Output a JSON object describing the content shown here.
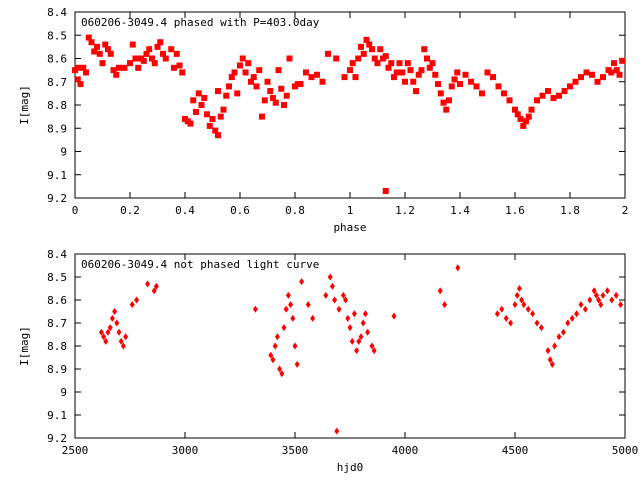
{
  "chart_data": [
    {
      "type": "scatter",
      "title": "060206-3049.4 phased with P=403.0day",
      "xlabel": "phase",
      "ylabel": "I[mag]",
      "xlim": [
        0,
        2
      ],
      "ylim": [
        9.2,
        8.4
      ],
      "y_inverted": true,
      "grid": false,
      "marker_color": "#ff0000",
      "xticks": [
        "0",
        "0.2",
        "0.4",
        "0.6",
        "0.8",
        "1",
        "1.2",
        "1.4",
        "1.6",
        "1.8",
        "2"
      ],
      "yticks": [
        "8.4",
        "8.5",
        "8.6",
        "8.7",
        "8.8",
        "8.9",
        "9",
        "9.1",
        "9.2"
      ],
      "points": [
        [
          0.0,
          8.65
        ],
        [
          0.01,
          8.64
        ],
        [
          0.01,
          8.69
        ],
        [
          0.02,
          8.71
        ],
        [
          0.03,
          8.64
        ],
        [
          0.04,
          8.66
        ],
        [
          0.05,
          8.51
        ],
        [
          0.06,
          8.53
        ],
        [
          0.07,
          8.57
        ],
        [
          0.08,
          8.55
        ],
        [
          0.09,
          8.58
        ],
        [
          0.1,
          8.62
        ],
        [
          0.11,
          8.54
        ],
        [
          0.12,
          8.56
        ],
        [
          0.13,
          8.58
        ],
        [
          0.14,
          8.65
        ],
        [
          0.15,
          8.67
        ],
        [
          0.16,
          8.64
        ],
        [
          0.18,
          8.64
        ],
        [
          0.2,
          8.62
        ],
        [
          0.21,
          8.54
        ],
        [
          0.22,
          8.6
        ],
        [
          0.23,
          8.64
        ],
        [
          0.24,
          8.6
        ],
        [
          0.25,
          8.61
        ],
        [
          0.26,
          8.58
        ],
        [
          0.27,
          8.56
        ],
        [
          0.28,
          8.6
        ],
        [
          0.29,
          8.62
        ],
        [
          0.3,
          8.55
        ],
        [
          0.31,
          8.53
        ],
        [
          0.32,
          8.58
        ],
        [
          0.33,
          8.6
        ],
        [
          0.35,
          8.56
        ],
        [
          0.36,
          8.64
        ],
        [
          0.37,
          8.58
        ],
        [
          0.38,
          8.63
        ],
        [
          0.39,
          8.66
        ],
        [
          0.4,
          8.86
        ],
        [
          0.41,
          8.87
        ],
        [
          0.42,
          8.88
        ],
        [
          0.43,
          8.78
        ],
        [
          0.44,
          8.83
        ],
        [
          0.45,
          8.75
        ],
        [
          0.46,
          8.8
        ],
        [
          0.47,
          8.77
        ],
        [
          0.48,
          8.84
        ],
        [
          0.49,
          8.89
        ],
        [
          0.5,
          8.86
        ],
        [
          0.51,
          8.91
        ],
        [
          0.52,
          8.93
        ],
        [
          0.52,
          8.74
        ],
        [
          0.53,
          8.85
        ],
        [
          0.54,
          8.82
        ],
        [
          0.55,
          8.76
        ],
        [
          0.56,
          8.72
        ],
        [
          0.57,
          8.68
        ],
        [
          0.58,
          8.66
        ],
        [
          0.59,
          8.75
        ],
        [
          0.6,
          8.63
        ],
        [
          0.61,
          8.6
        ],
        [
          0.62,
          8.66
        ],
        [
          0.63,
          8.62
        ],
        [
          0.64,
          8.7
        ],
        [
          0.65,
          8.68
        ],
        [
          0.66,
          8.72
        ],
        [
          0.67,
          8.65
        ],
        [
          0.68,
          8.85
        ],
        [
          0.69,
          8.78
        ],
        [
          0.7,
          8.7
        ],
        [
          0.71,
          8.74
        ],
        [
          0.72,
          8.77
        ],
        [
          0.73,
          8.79
        ],
        [
          0.74,
          8.65
        ],
        [
          0.75,
          8.73
        ],
        [
          0.76,
          8.8
        ],
        [
          0.77,
          8.76
        ],
        [
          0.78,
          8.6
        ],
        [
          0.8,
          8.72
        ],
        [
          0.81,
          8.71
        ],
        [
          0.82,
          8.71
        ],
        [
          0.84,
          8.66
        ],
        [
          0.86,
          8.68
        ],
        [
          0.88,
          8.67
        ],
        [
          0.9,
          8.7
        ],
        [
          0.92,
          8.58
        ],
        [
          0.95,
          8.6
        ],
        [
          0.98,
          8.68
        ],
        [
          1.0,
          8.65
        ],
        [
          1.01,
          8.62
        ],
        [
          1.02,
          8.68
        ],
        [
          1.03,
          8.6
        ],
        [
          1.04,
          8.55
        ],
        [
          1.05,
          8.58
        ],
        [
          1.06,
          8.52
        ],
        [
          1.07,
          8.54
        ],
        [
          1.08,
          8.56
        ],
        [
          1.09,
          8.6
        ],
        [
          1.1,
          8.62
        ],
        [
          1.11,
          8.56
        ],
        [
          1.12,
          8.6
        ],
        [
          1.13,
          8.59
        ],
        [
          1.14,
          8.64
        ],
        [
          1.15,
          8.62
        ],
        [
          1.16,
          8.68
        ],
        [
          1.17,
          8.66
        ],
        [
          1.18,
          8.62
        ],
        [
          1.19,
          8.66
        ],
        [
          1.2,
          8.7
        ],
        [
          1.21,
          8.62
        ],
        [
          1.22,
          8.65
        ],
        [
          1.23,
          8.7
        ],
        [
          1.24,
          8.74
        ],
        [
          1.25,
          8.67
        ],
        [
          1.26,
          8.65
        ],
        [
          1.27,
          8.56
        ],
        [
          1.28,
          8.6
        ],
        [
          1.29,
          8.64
        ],
        [
          1.3,
          8.62
        ],
        [
          1.31,
          8.67
        ],
        [
          1.32,
          8.71
        ],
        [
          1.33,
          8.75
        ],
        [
          1.34,
          8.79
        ],
        [
          1.35,
          8.82
        ],
        [
          1.36,
          8.78
        ],
        [
          1.37,
          8.72
        ],
        [
          1.38,
          8.69
        ],
        [
          1.39,
          8.66
        ],
        [
          1.4,
          8.71
        ],
        [
          1.42,
          8.67
        ],
        [
          1.44,
          8.7
        ],
        [
          1.46,
          8.72
        ],
        [
          1.48,
          8.75
        ],
        [
          1.5,
          8.66
        ],
        [
          1.52,
          8.68
        ],
        [
          1.54,
          8.72
        ],
        [
          1.56,
          8.75
        ],
        [
          1.58,
          8.78
        ],
        [
          1.6,
          8.82
        ],
        [
          1.61,
          8.84
        ],
        [
          1.62,
          8.86
        ],
        [
          1.63,
          8.89
        ],
        [
          1.64,
          8.87
        ],
        [
          1.65,
          8.85
        ],
        [
          1.66,
          8.82
        ],
        [
          1.68,
          8.78
        ],
        [
          1.7,
          8.76
        ],
        [
          1.72,
          8.74
        ],
        [
          1.74,
          8.77
        ],
        [
          1.76,
          8.76
        ],
        [
          1.78,
          8.74
        ],
        [
          1.8,
          8.72
        ],
        [
          1.82,
          8.7
        ],
        [
          1.84,
          8.68
        ],
        [
          1.86,
          8.66
        ],
        [
          1.88,
          8.67
        ],
        [
          1.9,
          8.7
        ],
        [
          1.92,
          8.68
        ],
        [
          1.94,
          8.65
        ],
        [
          1.95,
          8.66
        ],
        [
          1.96,
          8.62
        ],
        [
          1.97,
          8.65
        ],
        [
          1.98,
          8.67
        ],
        [
          1.99,
          8.61
        ],
        [
          1.13,
          9.17
        ]
      ]
    },
    {
      "type": "scatter",
      "title": "060206-3049.4 not phased light curve",
      "xlabel": "hjd0",
      "ylabel": "I[mag]",
      "xlim": [
        2500,
        5000
      ],
      "ylim": [
        9.2,
        8.4
      ],
      "y_inverted": true,
      "grid": false,
      "marker_color": "#ff0000",
      "xticks": [
        "2500",
        "3000",
        "3500",
        "4000",
        "4500",
        "5000"
      ],
      "yticks": [
        "8.4",
        "8.5",
        "8.6",
        "8.7",
        "8.8",
        "8.9",
        "9",
        "9.1",
        "9.2"
      ],
      "points": [
        [
          2620,
          8.74
        ],
        [
          2630,
          8.76
        ],
        [
          2640,
          8.78
        ],
        [
          2650,
          8.74
        ],
        [
          2660,
          8.72
        ],
        [
          2670,
          8.68
        ],
        [
          2680,
          8.65
        ],
        [
          2690,
          8.7
        ],
        [
          2700,
          8.74
        ],
        [
          2710,
          8.78
        ],
        [
          2720,
          8.8
        ],
        [
          2730,
          8.76
        ],
        [
          2760,
          8.62
        ],
        [
          2780,
          8.6
        ],
        [
          2830,
          8.53
        ],
        [
          2860,
          8.56
        ],
        [
          2870,
          8.54
        ],
        [
          3320,
          8.64
        ],
        [
          3390,
          8.84
        ],
        [
          3400,
          8.86
        ],
        [
          3410,
          8.8
        ],
        [
          3420,
          8.76
        ],
        [
          3430,
          8.9
        ],
        [
          3440,
          8.92
        ],
        [
          3450,
          8.72
        ],
        [
          3460,
          8.64
        ],
        [
          3470,
          8.58
        ],
        [
          3480,
          8.62
        ],
        [
          3490,
          8.68
        ],
        [
          3500,
          8.8
        ],
        [
          3510,
          8.88
        ],
        [
          3530,
          8.52
        ],
        [
          3560,
          8.62
        ],
        [
          3580,
          8.68
        ],
        [
          3640,
          8.58
        ],
        [
          3660,
          8.5
        ],
        [
          3670,
          8.54
        ],
        [
          3680,
          8.6
        ],
        [
          3690,
          9.17
        ],
        [
          3700,
          8.64
        ],
        [
          3720,
          8.58
        ],
        [
          3730,
          8.6
        ],
        [
          3740,
          8.68
        ],
        [
          3750,
          8.72
        ],
        [
          3760,
          8.78
        ],
        [
          3770,
          8.66
        ],
        [
          3780,
          8.82
        ],
        [
          3790,
          8.78
        ],
        [
          3800,
          8.76
        ],
        [
          3810,
          8.7
        ],
        [
          3820,
          8.66
        ],
        [
          3830,
          8.74
        ],
        [
          3850,
          8.8
        ],
        [
          3860,
          8.82
        ],
        [
          3950,
          8.67
        ],
        [
          4160,
          8.56
        ],
        [
          4180,
          8.62
        ],
        [
          4240,
          8.46
        ],
        [
          4420,
          8.66
        ],
        [
          4440,
          8.64
        ],
        [
          4460,
          8.68
        ],
        [
          4480,
          8.7
        ],
        [
          4500,
          8.62
        ],
        [
          4510,
          8.58
        ],
        [
          4520,
          8.55
        ],
        [
          4530,
          8.6
        ],
        [
          4540,
          8.62
        ],
        [
          4560,
          8.64
        ],
        [
          4580,
          8.66
        ],
        [
          4600,
          8.7
        ],
        [
          4620,
          8.72
        ],
        [
          4650,
          8.82
        ],
        [
          4660,
          8.86
        ],
        [
          4670,
          8.88
        ],
        [
          4680,
          8.8
        ],
        [
          4700,
          8.76
        ],
        [
          4720,
          8.74
        ],
        [
          4740,
          8.7
        ],
        [
          4760,
          8.68
        ],
        [
          4780,
          8.66
        ],
        [
          4800,
          8.62
        ],
        [
          4820,
          8.64
        ],
        [
          4840,
          8.6
        ],
        [
          4860,
          8.56
        ],
        [
          4870,
          8.58
        ],
        [
          4880,
          8.6
        ],
        [
          4890,
          8.62
        ],
        [
          4900,
          8.58
        ],
        [
          4920,
          8.56
        ],
        [
          4940,
          8.6
        ],
        [
          4960,
          8.58
        ],
        [
          4980,
          8.62
        ]
      ]
    }
  ]
}
